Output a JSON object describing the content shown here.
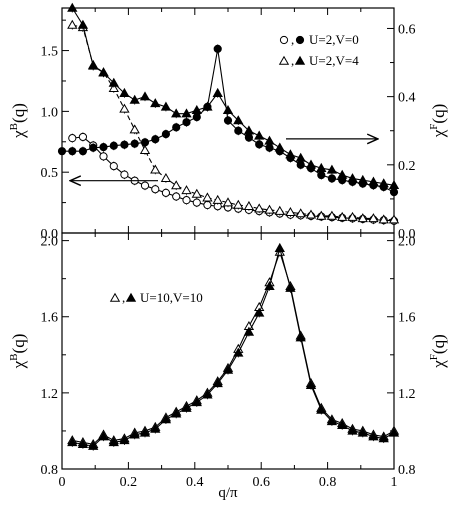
{
  "chart_data": [
    {
      "type": "line",
      "panel": "top",
      "xlabel": "",
      "ylabel": "χB(q)",
      "y2label": "χF(q)",
      "xlim": [
        0,
        1
      ],
      "ylim": [
        0,
        1.85
      ],
      "y2lim": [
        0,
        0.66
      ],
      "xticks": [
        "0",
        "0.2",
        "0.4",
        "0.6",
        "0.8",
        "1"
      ],
      "yticks": [
        "0.0",
        "0.5",
        "1.0",
        "1.5"
      ],
      "y2ticks": [
        "0.0",
        "0.2",
        "0.4",
        "0.6"
      ],
      "grid": false,
      "legend_position": "top-right",
      "legend": [
        {
          "text": "U=2,V=0",
          "open_marker": "circle",
          "filled_marker": "circle"
        },
        {
          "text": "U=2,V=4",
          "open_marker": "triangle",
          "filled_marker": "triangle"
        }
      ],
      "arrows": [
        {
          "points_to": "left axis (χB)",
          "at_y": 0.43
        },
        {
          "points_to": "right axis (χF)",
          "at_y2": 0.276
        }
      ],
      "series": [
        {
          "axis": "left",
          "marker": "circle",
          "filled": false,
          "line": "solid",
          "x": [
            0.031,
            0.063,
            0.094,
            0.125,
            0.156,
            0.188,
            0.219,
            0.25,
            0.281,
            0.313,
            0.344,
            0.375,
            0.406,
            0.438,
            0.469,
            0.5,
            0.531,
            0.563,
            0.594,
            0.625,
            0.656,
            0.688,
            0.719,
            0.75,
            0.781,
            0.813,
            0.844,
            0.875,
            0.906,
            0.938,
            0.969,
            1.0
          ],
          "y": [
            0.78,
            0.79,
            0.72,
            0.63,
            0.55,
            0.48,
            0.43,
            0.39,
            0.36,
            0.33,
            0.3,
            0.27,
            0.25,
            0.23,
            0.22,
            0.21,
            0.2,
            0.19,
            0.18,
            0.17,
            0.16,
            0.15,
            0.145,
            0.14,
            0.135,
            0.13,
            0.125,
            0.12,
            0.115,
            0.11,
            0.105,
            0.1
          ]
        },
        {
          "axis": "left",
          "marker": "triangle",
          "filled": false,
          "line": "dashed",
          "x": [
            0.031,
            0.063,
            0.094,
            0.125,
            0.156,
            0.188,
            0.219,
            0.25,
            0.281,
            0.313,
            0.344,
            0.375,
            0.406,
            0.438,
            0.469,
            0.5,
            0.531,
            0.563,
            0.594,
            0.625,
            0.656,
            0.688,
            0.719,
            0.75,
            0.781,
            0.813,
            0.844,
            0.875,
            0.906,
            0.938,
            0.969,
            1.0
          ],
          "y": [
            1.71,
            1.69,
            1.38,
            1.32,
            1.19,
            1.02,
            0.85,
            0.68,
            0.52,
            0.45,
            0.39,
            0.35,
            0.32,
            0.29,
            0.27,
            0.25,
            0.23,
            0.22,
            0.2,
            0.19,
            0.18,
            0.17,
            0.16,
            0.15,
            0.14,
            0.14,
            0.13,
            0.13,
            0.12,
            0.12,
            0.11,
            0.11
          ]
        },
        {
          "axis": "right",
          "marker": "circle",
          "filled": true,
          "line": "solid",
          "x": [
            0.0,
            0.031,
            0.063,
            0.094,
            0.125,
            0.156,
            0.188,
            0.219,
            0.25,
            0.281,
            0.313,
            0.344,
            0.375,
            0.406,
            0.438,
            0.469,
            0.5,
            0.531,
            0.563,
            0.594,
            0.625,
            0.656,
            0.688,
            0.719,
            0.75,
            0.781,
            0.813,
            0.844,
            0.875,
            0.906,
            0.938,
            0.969,
            1.0
          ],
          "y": [
            0.24,
            0.24,
            0.24,
            0.25,
            0.252,
            0.256,
            0.259,
            0.262,
            0.266,
            0.275,
            0.29,
            0.31,
            0.325,
            0.34,
            0.37,
            0.54,
            0.33,
            0.3,
            0.28,
            0.26,
            0.25,
            0.24,
            0.22,
            0.2,
            0.19,
            0.17,
            0.16,
            0.155,
            0.15,
            0.145,
            0.14,
            0.135,
            0.12
          ]
        },
        {
          "axis": "right",
          "marker": "triangle",
          "filled": true,
          "line": "solid",
          "x": [
            0.031,
            0.063,
            0.094,
            0.125,
            0.156,
            0.188,
            0.219,
            0.25,
            0.281,
            0.313,
            0.344,
            0.375,
            0.406,
            0.438,
            0.469,
            0.5,
            0.531,
            0.563,
            0.594,
            0.625,
            0.656,
            0.688,
            0.719,
            0.75,
            0.781,
            0.813,
            0.844,
            0.875,
            0.906,
            0.938,
            0.969,
            1.0
          ],
          "y": [
            0.66,
            0.61,
            0.49,
            0.47,
            0.44,
            0.41,
            0.39,
            0.4,
            0.38,
            0.37,
            0.35,
            0.35,
            0.36,
            0.37,
            0.41,
            0.36,
            0.33,
            0.3,
            0.285,
            0.27,
            0.25,
            0.23,
            0.22,
            0.2,
            0.19,
            0.185,
            0.17,
            0.16,
            0.155,
            0.15,
            0.145,
            0.14
          ]
        }
      ]
    },
    {
      "type": "line",
      "panel": "bottom",
      "xlabel": "q/π",
      "ylabel": "χB(q)",
      "y2label": "χF(q)",
      "xlim": [
        0,
        1
      ],
      "ylim": [
        0.8,
        2.04
      ],
      "y2lim": [
        0.8,
        2.04
      ],
      "xticks": [
        "0",
        "0.2",
        "0.4",
        "0.6",
        "0.8",
        "1"
      ],
      "yticks": [
        "0.8",
        "1.2",
        "1.6",
        "2.0"
      ],
      "y2ticks": [
        "0.8",
        "1.2",
        "1.6",
        "2.0"
      ],
      "grid": false,
      "legend_position": "top-left",
      "legend": [
        {
          "text": "U=10,V=10",
          "open_marker": "triangle",
          "filled_marker": "triangle"
        }
      ],
      "series": [
        {
          "axis": "left",
          "marker": "triangle",
          "filled": false,
          "line": "solid",
          "x": [
            0.031,
            0.063,
            0.094,
            0.125,
            0.156,
            0.188,
            0.219,
            0.25,
            0.281,
            0.313,
            0.344,
            0.375,
            0.406,
            0.438,
            0.469,
            0.5,
            0.531,
            0.563,
            0.594,
            0.625,
            0.656,
            0.688,
            0.719,
            0.75,
            0.781,
            0.813,
            0.844,
            0.875,
            0.906,
            0.938,
            0.969,
            1.0
          ],
          "y": [
            0.95,
            0.94,
            0.93,
            0.98,
            0.95,
            0.96,
            0.99,
            1.0,
            1.02,
            1.07,
            1.1,
            1.13,
            1.16,
            1.2,
            1.26,
            1.33,
            1.43,
            1.55,
            1.65,
            1.78,
            1.94,
            1.76,
            1.5,
            1.25,
            1.12,
            1.06,
            1.04,
            1.01,
            1.0,
            0.98,
            0.97,
            1.0
          ]
        },
        {
          "axis": "right",
          "marker": "triangle",
          "filled": true,
          "line": "solid",
          "x": [
            0.031,
            0.063,
            0.094,
            0.125,
            0.156,
            0.188,
            0.219,
            0.25,
            0.281,
            0.313,
            0.344,
            0.375,
            0.406,
            0.438,
            0.469,
            0.5,
            0.531,
            0.563,
            0.594,
            0.625,
            0.656,
            0.688,
            0.719,
            0.75,
            0.781,
            0.813,
            0.844,
            0.875,
            0.906,
            0.938,
            0.969,
            1.0
          ],
          "y": [
            0.94,
            0.93,
            0.92,
            0.97,
            0.94,
            0.95,
            0.98,
            0.99,
            1.01,
            1.06,
            1.09,
            1.12,
            1.15,
            1.19,
            1.25,
            1.32,
            1.41,
            1.52,
            1.62,
            1.76,
            1.96,
            1.75,
            1.49,
            1.24,
            1.11,
            1.05,
            1.03,
            1.0,
            0.99,
            0.97,
            0.96,
            0.99
          ]
        }
      ]
    }
  ]
}
